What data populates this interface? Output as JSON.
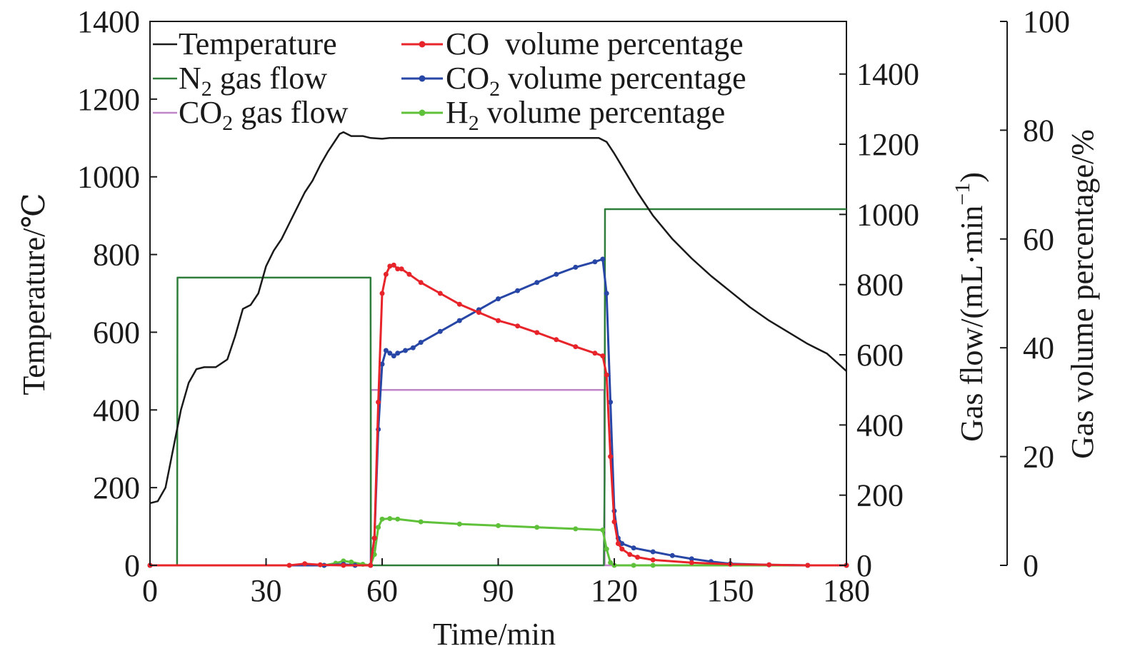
{
  "chart_data": {
    "type": "line",
    "xlabel": "Time/min",
    "ylabel": "Temperature/℃",
    "y2label_pre": "Gas flow/(mL·min",
    "y2label_sup": "−1",
    "y2label_post": ")",
    "y3label": "Gas volume percentage/%",
    "xlim": [
      0,
      180
    ],
    "ylim": [
      0,
      1400
    ],
    "y2lim": [
      0,
      1550
    ],
    "y3lim": [
      0,
      100
    ],
    "xticks": [
      "0",
      "30",
      "60",
      "90",
      "120",
      "150",
      "180"
    ],
    "yticks": [
      "0",
      "200",
      "400",
      "600",
      "800",
      "1000",
      "1200",
      "1400"
    ],
    "y2ticks": [
      "0",
      "200",
      "400",
      "600",
      "800",
      "1000",
      "1200",
      "1400"
    ],
    "y3ticks": [
      "0",
      "20",
      "40",
      "60",
      "80",
      "100"
    ],
    "grid": false,
    "legend_placement": "top-left",
    "legend": {
      "temperature": "Temperature",
      "n2_flow": {
        "pre": "N",
        "sub": "2",
        "post": " gas flow"
      },
      "co2_flow": {
        "pre": "CO",
        "sub": "2",
        "post": " gas flow"
      },
      "co_pct": {
        "pre": "CO  volume percentage",
        "sub": "",
        "post": ""
      },
      "co2_pct": {
        "pre": "CO",
        "sub": "2",
        "post": " volume percentage"
      },
      "h2_pct": {
        "pre": "H",
        "sub": "2",
        "post": " volume percentage"
      }
    },
    "series": [
      {
        "name": "Temperature",
        "axis": "left",
        "color": "#1a1a1a",
        "markers": false,
        "x": [
          0,
          2,
          4,
          6,
          8,
          10,
          12,
          14,
          17,
          20,
          22,
          24,
          26,
          28,
          30,
          32,
          34,
          36,
          38,
          40,
          42,
          44,
          46,
          48,
          49,
          50,
          52,
          55,
          57,
          60,
          62,
          65,
          70,
          80,
          90,
          100,
          110,
          116,
          118,
          120,
          123,
          126,
          130,
          135,
          140,
          145,
          150,
          155,
          160,
          165,
          170,
          175,
          180
        ],
        "y": [
          160,
          165,
          200,
          300,
          400,
          470,
          505,
          510,
          510,
          530,
          590,
          660,
          670,
          700,
          770,
          810,
          840,
          880,
          920,
          960,
          990,
          1030,
          1065,
          1095,
          1110,
          1115,
          1105,
          1105,
          1100,
          1098,
          1100,
          1100,
          1100,
          1100,
          1100,
          1100,
          1100,
          1100,
          1090,
          1060,
          1010,
          960,
          900,
          840,
          790,
          745,
          705,
          665,
          630,
          600,
          570,
          545,
          500
        ]
      },
      {
        "name": "N2 gas flow",
        "axis": "right1",
        "color": "#2e7d3a",
        "markers": false,
        "x": [
          0,
          7,
          7.1,
          57,
          57.1,
          117.3,
          117.5,
          117.6,
          180
        ],
        "y": [
          0,
          0,
          820,
          820,
          0,
          0,
          250,
          1015,
          1015
        ]
      },
      {
        "name": "CO2 gas flow",
        "axis": "right1",
        "color": "#c084c8",
        "markers": false,
        "x": [
          0,
          57,
          57.1,
          117.4,
          117.5,
          180
        ],
        "y": [
          0,
          0,
          500,
          500,
          0,
          0
        ]
      },
      {
        "name": "CO volume percentage",
        "axis": "right2",
        "color": "#e8242b",
        "markers": true,
        "x": [
          0,
          36,
          40,
          44,
          50,
          57,
          58,
          59,
          60,
          61,
          62,
          63,
          64,
          65,
          67,
          70,
          75,
          80,
          85,
          90,
          95,
          100,
          105,
          110,
          115,
          117,
          118,
          119,
          120,
          121,
          122,
          124,
          126,
          130,
          140,
          150,
          160,
          170,
          180
        ],
        "y": [
          0,
          0,
          0.3,
          0.1,
          0,
          0,
          5,
          30,
          50,
          53.5,
          55,
          55.2,
          54.5,
          54.5,
          53.5,
          52,
          50,
          48,
          46.5,
          45,
          44,
          42.8,
          41.5,
          40.2,
          39,
          38.5,
          35,
          20,
          8,
          4,
          3,
          2,
          1.5,
          1,
          0.5,
          0.2,
          0.1,
          0,
          0
        ]
      },
      {
        "name": "CO2 volume percentage",
        "axis": "right2",
        "color": "#2746a6",
        "markers": true,
        "x": [
          0,
          45,
          50,
          53,
          57,
          58,
          59,
          60,
          61,
          62,
          63,
          64,
          66,
          68,
          70,
          75,
          80,
          85,
          90,
          95,
          100,
          105,
          110,
          115,
          117,
          118,
          119,
          120,
          121,
          122,
          125,
          130,
          135,
          140,
          145,
          150,
          160,
          170,
          180
        ],
        "y": [
          0,
          0,
          0.2,
          0,
          0,
          5,
          25,
          37,
          39.5,
          39,
          38.5,
          39,
          39.5,
          40,
          41,
          43,
          45,
          47,
          49,
          50.5,
          52,
          53.5,
          54.8,
          55.8,
          56.3,
          50,
          30,
          10,
          5,
          4,
          3.2,
          2.5,
          1.8,
          1.2,
          0.7,
          0.3,
          0.1,
          0,
          0
        ]
      },
      {
        "name": "H2 volume percentage",
        "axis": "right2",
        "color": "#5fc13a",
        "markers": true,
        "x": [
          0,
          45,
          48,
          50,
          52,
          55,
          57,
          58,
          59,
          60,
          62,
          64,
          70,
          80,
          90,
          100,
          110,
          117,
          118,
          119,
          120,
          125,
          130,
          180
        ],
        "y": [
          0,
          0,
          0.4,
          0.8,
          0.6,
          0.2,
          0,
          2,
          7,
          8.5,
          8.6,
          8.5,
          8.0,
          7.6,
          7.3,
          7.0,
          6.7,
          6.5,
          3,
          0.5,
          0,
          0,
          0,
          0
        ]
      }
    ]
  }
}
